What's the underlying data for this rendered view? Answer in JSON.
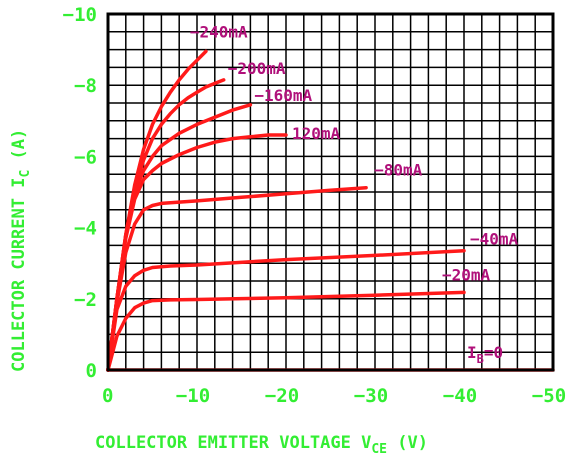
{
  "chart_data": {
    "type": "line",
    "title": "",
    "xlabel": "COLLECTOR EMITTER VOLTAGE V",
    "xlabel_sub": "CE",
    "xlabel_unit": " (V)",
    "ylabel": "COLLECTOR CURRENT I",
    "ylabel_sub": "C",
    "ylabel_unit": " (A)",
    "xlim": [
      0,
      -50
    ],
    "ylim": [
      0,
      -10
    ],
    "x_ticks": [
      0,
      -10,
      -20,
      -30,
      -40,
      -50
    ],
    "x_tick_labels": [
      "0",
      "−10",
      "−20",
      "−30",
      "−40",
      "−50"
    ],
    "y_ticks": [
      0,
      -2,
      -4,
      -6,
      -8,
      -10
    ],
    "y_tick_labels": [
      "0",
      "−2",
      "−4",
      "−6",
      "−8",
      "−10"
    ],
    "grid": true,
    "colors": {
      "curve": "#ff1a1a",
      "axis_text": "#33ee33",
      "curve_label": "#b0107a",
      "grid": "#000000"
    },
    "series": [
      {
        "name": "−240mA",
        "points": [
          [
            0,
            0
          ],
          [
            -1,
            -2
          ],
          [
            -2,
            -3.8
          ],
          [
            -3,
            -5.2
          ],
          [
            -4,
            -6.2
          ],
          [
            -5,
            -6.9
          ],
          [
            -6,
            -7.4
          ],
          [
            -7,
            -7.8
          ],
          [
            -8,
            -8.15
          ],
          [
            -9,
            -8.45
          ],
          [
            -10,
            -8.7
          ],
          [
            -11,
            -8.95
          ]
        ]
      },
      {
        "name": "−200mA",
        "points": [
          [
            0,
            0
          ],
          [
            -1,
            -2
          ],
          [
            -2,
            -3.8
          ],
          [
            -3,
            -5.1
          ],
          [
            -4,
            -5.9
          ],
          [
            -5,
            -6.5
          ],
          [
            -6,
            -6.9
          ],
          [
            -7,
            -7.2
          ],
          [
            -8,
            -7.45
          ],
          [
            -9,
            -7.65
          ],
          [
            -10,
            -7.8
          ],
          [
            -11,
            -7.95
          ],
          [
            -12,
            -8.05
          ],
          [
            -13,
            -8.15
          ]
        ]
      },
      {
        "name": "−160mA",
        "points": [
          [
            0,
            0
          ],
          [
            -1,
            -2
          ],
          [
            -2,
            -3.8
          ],
          [
            -3,
            -5.0
          ],
          [
            -4,
            -5.6
          ],
          [
            -5,
            -6.0
          ],
          [
            -6,
            -6.3
          ],
          [
            -8,
            -6.65
          ],
          [
            -10,
            -6.9
          ],
          [
            -12,
            -7.1
          ],
          [
            -14,
            -7.3
          ],
          [
            -16,
            -7.45
          ]
        ]
      },
      {
        "name": "120mA",
        "points": [
          [
            0,
            0
          ],
          [
            -1,
            -2
          ],
          [
            -2,
            -3.7
          ],
          [
            -3,
            -4.8
          ],
          [
            -4,
            -5.35
          ],
          [
            -5,
            -5.6
          ],
          [
            -6,
            -5.8
          ],
          [
            -8,
            -6.05
          ],
          [
            -10,
            -6.25
          ],
          [
            -12,
            -6.4
          ],
          [
            -14,
            -6.5
          ],
          [
            -16,
            -6.55
          ],
          [
            -18,
            -6.6
          ],
          [
            -20,
            -6.6
          ]
        ]
      },
      {
        "name": "−80mA",
        "points": [
          [
            0,
            0
          ],
          [
            -1,
            -1.9
          ],
          [
            -2,
            -3.3
          ],
          [
            -3,
            -4.1
          ],
          [
            -4,
            -4.5
          ],
          [
            -5,
            -4.62
          ],
          [
            -6,
            -4.68
          ],
          [
            -10,
            -4.75
          ],
          [
            -15,
            -4.85
          ],
          [
            -20,
            -4.95
          ],
          [
            -25,
            -5.05
          ],
          [
            -29,
            -5.12
          ]
        ]
      },
      {
        "name": "−40mA",
        "points": [
          [
            0,
            0
          ],
          [
            -1,
            -1.7
          ],
          [
            -2,
            -2.35
          ],
          [
            -3,
            -2.65
          ],
          [
            -4,
            -2.8
          ],
          [
            -5,
            -2.88
          ],
          [
            -7,
            -2.92
          ],
          [
            -10,
            -2.95
          ],
          [
            -20,
            -3.1
          ],
          [
            -30,
            -3.22
          ],
          [
            -40,
            -3.35
          ]
        ]
      },
      {
        "name": "−20mA",
        "points": [
          [
            0,
            0
          ],
          [
            -1,
            -0.95
          ],
          [
            -2,
            -1.45
          ],
          [
            -3,
            -1.75
          ],
          [
            -4,
            -1.88
          ],
          [
            -5,
            -1.95
          ],
          [
            -7,
            -1.97
          ],
          [
            -10,
            -1.98
          ],
          [
            -20,
            -2.03
          ],
          [
            -30,
            -2.1
          ],
          [
            -40,
            -2.18
          ]
        ]
      },
      {
        "name": "I_B=0",
        "points": [
          [
            0,
            0
          ],
          [
            -50,
            0
          ]
        ]
      }
    ],
    "annotations": [
      {
        "series": "−240mA",
        "text": "−240mA"
      },
      {
        "series": "−200mA",
        "text": "−200mA"
      },
      {
        "series": "−160mA",
        "text": "−160mA"
      },
      {
        "series": "120mA",
        "text": "120mA"
      },
      {
        "series": "−80mA",
        "text": "−80mA"
      },
      {
        "series": "−40mA",
        "text": "−40mA"
      },
      {
        "series": "−20mA",
        "text": "−20mA"
      },
      {
        "series": "I_B=0",
        "text": "I",
        "sub": "B",
        "suffix": "=0"
      }
    ]
  }
}
